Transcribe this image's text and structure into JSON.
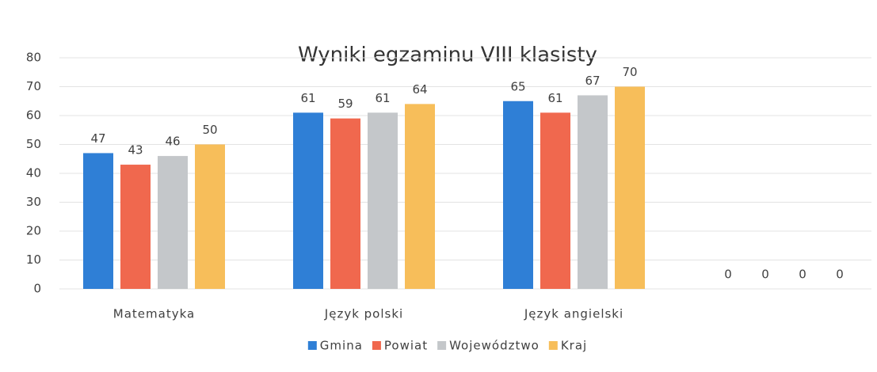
{
  "chart_data": {
    "type": "bar",
    "title": "Wyniki egzaminu VIII klasisty",
    "categories": [
      "Matematyka",
      "Język polski",
      "Język angielski",
      null
    ],
    "series": [
      {
        "name": "Gmina",
        "color": "#2f7fd6",
        "values": [
          47,
          61,
          65,
          0
        ]
      },
      {
        "name": "Powiat",
        "color": "#f0684e",
        "values": [
          43,
          59,
          61,
          0
        ]
      },
      {
        "name": "Województwo",
        "color": "#c4c7ca",
        "values": [
          46,
          61,
          67,
          0
        ]
      },
      {
        "name": "Kraj",
        "color": "#f7be5a",
        "values": [
          50,
          64,
          70,
          0
        ]
      }
    ],
    "ylim": [
      0,
      80
    ],
    "yticks": [
      0,
      10,
      20,
      30,
      40,
      50,
      60,
      70,
      80
    ],
    "grid": true,
    "legend": "bottom"
  }
}
